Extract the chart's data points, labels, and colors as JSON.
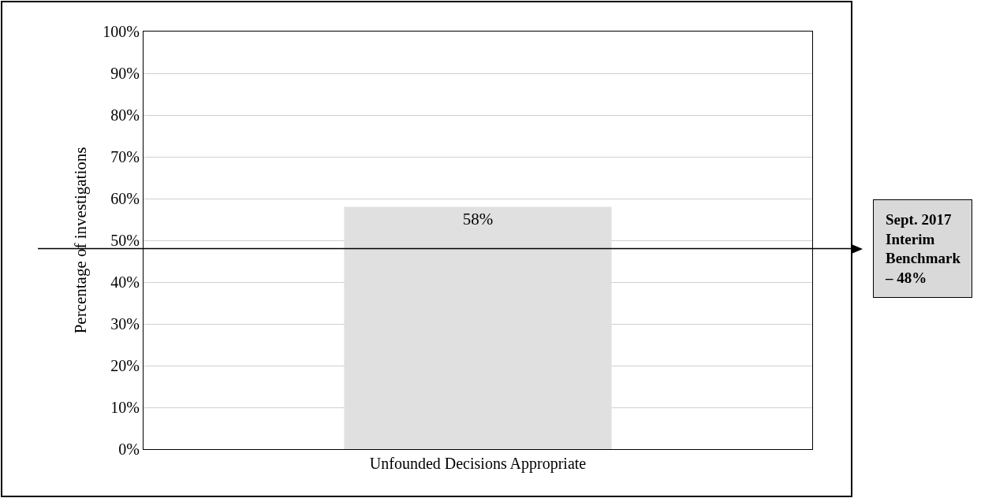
{
  "chart_data": {
    "type": "bar",
    "ylabel": "Percentage of investigations",
    "categories": [
      "Unfounded Decisions Appropriate"
    ],
    "values": [
      58
    ],
    "value_labels": [
      "58%"
    ],
    "color": "#e0e0e0",
    "ylim": [
      0,
      100
    ],
    "yticks": [
      {
        "value": 0,
        "label": "0%"
      },
      {
        "value": 10,
        "label": "10%"
      },
      {
        "value": 20,
        "label": "20%"
      },
      {
        "value": 30,
        "label": "30%"
      },
      {
        "value": 40,
        "label": "40%"
      },
      {
        "value": 50,
        "label": "50%"
      },
      {
        "value": 60,
        "label": "60%"
      },
      {
        "value": 70,
        "label": "70%"
      },
      {
        "value": 80,
        "label": "80%"
      },
      {
        "value": 90,
        "label": "90%"
      },
      {
        "value": 100,
        "label": "100%"
      }
    ],
    "grid": "y",
    "ref_lines": [
      {
        "axis": "y",
        "value": 48,
        "label": "Sept. 2017 Interim Benchmark – 48%",
        "color": "#000000"
      }
    ]
  }
}
